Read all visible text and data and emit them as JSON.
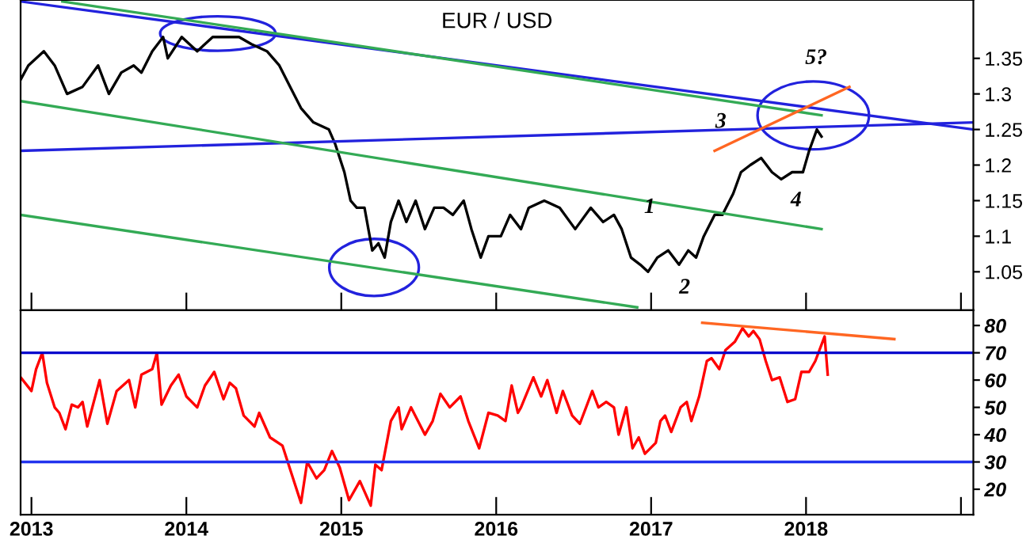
{
  "chart_data": [
    {
      "type": "line",
      "title": "EUR / USD",
      "tick_labels": "y",
      "grid": false,
      "legend": false,
      "xlim": [
        2012.93,
        2019.08
      ],
      "ylim": [
        0.996,
        1.432
      ],
      "xticks": [
        2013,
        2014,
        2015,
        2016,
        2017,
        2018,
        2019
      ],
      "yticks": [
        1.05,
        1.1,
        1.15,
        1.2,
        1.25,
        1.3,
        1.35
      ],
      "series": [
        {
          "color": "#000000",
          "x": [
            2012.93,
            2012.98,
            2013.08,
            2013.15,
            2013.23,
            2013.33,
            2013.43,
            2013.5,
            2013.58,
            2013.66,
            2013.71,
            2013.78,
            2013.85,
            2013.88,
            2013.97,
            2014.07,
            2014.17,
            2014.27,
            2014.34,
            2014.42,
            2014.52,
            2014.6,
            2014.67,
            2014.74,
            2014.82,
            2014.92,
            2014.96,
            2015.02,
            2015.06,
            2015.1,
            2015.15,
            2015.2,
            2015.24,
            2015.28,
            2015.32,
            2015.37,
            2015.42,
            2015.48,
            2015.54,
            2015.6,
            2015.66,
            2015.72,
            2015.79,
            2015.84,
            2015.9,
            2015.95,
            2016.03,
            2016.09,
            2016.16,
            2016.21,
            2016.31,
            2016.41,
            2016.51,
            2016.61,
            2016.69,
            2016.76,
            2016.81,
            2016.87,
            2016.93,
            2016.98,
            2017.04,
            2017.11,
            2017.18,
            2017.24,
            2017.29,
            2017.34,
            2017.41,
            2017.46,
            2017.53,
            2017.58,
            2017.64,
            2017.71,
            2017.78,
            2017.84,
            2017.91,
            2017.98,
            2018.02,
            2018.07,
            2018.1
          ],
          "values": [
            1.32,
            1.34,
            1.36,
            1.34,
            1.3,
            1.31,
            1.34,
            1.3,
            1.33,
            1.34,
            1.33,
            1.36,
            1.38,
            1.35,
            1.38,
            1.36,
            1.38,
            1.38,
            1.38,
            1.37,
            1.36,
            1.34,
            1.31,
            1.28,
            1.26,
            1.25,
            1.23,
            1.19,
            1.15,
            1.14,
            1.14,
            1.08,
            1.09,
            1.07,
            1.12,
            1.15,
            1.12,
            1.15,
            1.11,
            1.14,
            1.14,
            1.13,
            1.15,
            1.11,
            1.07,
            1.1,
            1.1,
            1.13,
            1.11,
            1.14,
            1.15,
            1.14,
            1.11,
            1.14,
            1.12,
            1.13,
            1.11,
            1.07,
            1.06,
            1.05,
            1.07,
            1.08,
            1.06,
            1.08,
            1.07,
            1.1,
            1.13,
            1.13,
            1.16,
            1.19,
            1.2,
            1.21,
            1.19,
            1.18,
            1.19,
            1.19,
            1.22,
            1.25,
            1.24
          ]
        },
        {
          "color": "#2222dd",
          "x": [
            2012.93,
            2019.08
          ],
          "values": [
            1.43,
            1.25
          ]
        },
        {
          "color": "#2222dd",
          "x": [
            2012.93,
            2019.08
          ],
          "values": [
            1.22,
            1.26
          ]
        },
        {
          "color": "#33aa55",
          "x": [
            2013.2,
            2018.1
          ],
          "values": [
            1.43,
            1.27
          ]
        },
        {
          "color": "#33aa55",
          "x": [
            2012.93,
            2018.1
          ],
          "values": [
            1.29,
            1.11
          ]
        },
        {
          "color": "#33aa55",
          "x": [
            2012.93,
            2016.91
          ],
          "values": [
            1.13,
            1.0
          ]
        },
        {
          "color": "#ff6622",
          "x": [
            2017.41,
            2018.28
          ],
          "values": [
            1.22,
            1.31
          ]
        }
      ],
      "annotations": [
        {
          "text": "1",
          "x": 2016.99,
          "y": 1.14
        },
        "2",
        {
          "text": "3",
          "x": 2017.45,
          "y": 1.26
        },
        "4",
        "5?"
      ]
    },
    {
      "type": "line",
      "grid": false,
      "legend": false,
      "xlim": [
        2012.93,
        2019.08
      ],
      "ylim": [
        10.7,
        85.6
      ],
      "xticks": [
        2013,
        2014,
        2015,
        2016,
        2017,
        2018,
        {
          "value": 2019,
          "label": null
        }
      ],
      "yticks": [
        20,
        30,
        40,
        50,
        60,
        70,
        80
      ],
      "ref_lines": [
        {
          "axis": "y",
          "value": 70,
          "color": "#0000cc"
        },
        {
          "axis": "y",
          "value": 30,
          "color": "#2233ee"
        }
      ],
      "series": [
        {
          "color": "#ff0000",
          "x": [
            2012.93,
            2013.0,
            2013.03,
            2013.07,
            2013.1,
            2013.15,
            2013.18,
            2013.22,
            2013.26,
            2013.3,
            2013.33,
            2013.36,
            2013.44,
            2013.49,
            2013.55,
            2013.63,
            2013.67,
            2013.71,
            2013.78,
            2013.81,
            2013.84,
            2013.9,
            2013.95,
            2014.0,
            2014.07,
            2014.12,
            2014.18,
            2014.24,
            2014.28,
            2014.32,
            2014.37,
            2014.44,
            2014.47,
            2014.54,
            2014.62,
            2014.74,
            2014.78,
            2014.84,
            2014.89,
            2014.94,
            2014.99,
            2015.05,
            2015.12,
            2015.19,
            2015.22,
            2015.26,
            2015.32,
            2015.37,
            2015.39,
            2015.45,
            2015.54,
            2015.59,
            2015.64,
            2015.7,
            2015.77,
            2015.82,
            2015.89,
            2015.95,
            2016.01,
            2016.06,
            2016.1,
            2016.14,
            2016.16,
            2016.24,
            2016.29,
            2016.33,
            2016.39,
            2016.43,
            2016.49,
            2016.54,
            2016.58,
            2016.62,
            2016.66,
            2016.71,
            2016.76,
            2016.79,
            2016.84,
            2016.88,
            2016.92,
            2016.96,
            2017.03,
            2017.06,
            2017.09,
            2017.13,
            2017.19,
            2017.23,
            2017.26,
            2017.31,
            2017.36,
            2017.39,
            2017.44,
            2017.48,
            2017.54,
            2017.59,
            2017.63,
            2017.66,
            2017.7,
            2017.74,
            2017.78,
            2017.83,
            2017.88,
            2017.93,
            2017.97,
            2018.02,
            2018.06,
            2018.12,
            2018.14
          ],
          "values": [
            61,
            56,
            64,
            70,
            59,
            50,
            48,
            42,
            51,
            50,
            52,
            43,
            60,
            44,
            56,
            60,
            50,
            62,
            64,
            70,
            51,
            58,
            62,
            54,
            50,
            58,
            63,
            53,
            59,
            57,
            47,
            43,
            48,
            39,
            36,
            15,
            30,
            24,
            27,
            34,
            28,
            16,
            23,
            14,
            29,
            27,
            45,
            50,
            42,
            50,
            40,
            45,
            55,
            50,
            54,
            45,
            35,
            48,
            47,
            45,
            58,
            48,
            50,
            61,
            54,
            60,
            48,
            56,
            47,
            44,
            50,
            56,
            50,
            52,
            50,
            40,
            50,
            35,
            39,
            33,
            37,
            45,
            47,
            41,
            50,
            52,
            45,
            54,
            67,
            68,
            64,
            71,
            74,
            79,
            76,
            78,
            75,
            67,
            60,
            61,
            52,
            53,
            63,
            63,
            67,
            76,
            62
          ]
        },
        {
          "color": "#ff6622",
          "x": [
            2017.33,
            2018.57
          ],
          "values": [
            81,
            75
          ]
        }
      ]
    }
  ]
}
